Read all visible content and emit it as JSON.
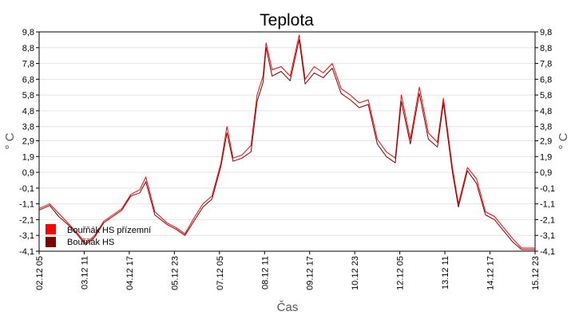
{
  "chart_data": {
    "type": "line",
    "title": "Teplota",
    "xlabel": "Čas",
    "ylabel": "° C",
    "ylabel_right": "° C",
    "grid": true,
    "legend_position": "bottom-left",
    "colors": {
      "background": "#ffffff",
      "grid": "#e4e4e4",
      "series_ground": "#ff0000",
      "series_main": "#800000"
    },
    "ylim": [
      -4.1,
      9.8
    ],
    "yticks": [
      "9,8",
      "8,8",
      "7,8",
      "6,8",
      "5,8",
      "4,8",
      "3,8",
      "2,9",
      "1,9",
      "0,9",
      "-0,1",
      "-1,1",
      "-2,1",
      "-3,1",
      "-4,1"
    ],
    "ytick_values": [
      9.8,
      8.8,
      7.8,
      6.8,
      5.8,
      4.8,
      3.8,
      2.9,
      1.9,
      0.9,
      -0.1,
      -1.1,
      -2.1,
      -3.1,
      -4.1
    ],
    "xlim": [
      "2019-12-02T05:00",
      "2019-12-15T23:00"
    ],
    "xticks": [
      "02.12 05",
      "03.12 11",
      "04.12 17",
      "05.12 23",
      "07.12 05",
      "08.12 11",
      "09.12 17",
      "10.12 23",
      "12.12 05",
      "13.12 11",
      "14.12 17",
      "15.12 23"
    ],
    "xtick_values": [
      "2019-12-02T05:00",
      "2019-12-03T11:00",
      "2019-12-04T17:00",
      "2019-12-05T23:00",
      "2019-12-07T05:00",
      "2019-12-08T11:00",
      "2019-12-09T17:00",
      "2019-12-10T23:00",
      "2019-12-12T05:00",
      "2019-12-13T11:00",
      "2019-12-14T17:00",
      "2019-12-15T23:00"
    ],
    "series": [
      {
        "name": "Bouřňák HS přízemní",
        "color": "#ff0000",
        "points": [
          [
            "2019-12-02T05:00",
            -1.4
          ],
          [
            "2019-12-02T12:00",
            -1.1
          ],
          [
            "2019-12-02T18:00",
            -1.7
          ],
          [
            "2019-12-03T00:00",
            -2.3
          ],
          [
            "2019-12-03T06:00",
            -2.9
          ],
          [
            "2019-12-03T12:00",
            -3.6
          ],
          [
            "2019-12-03T18:00",
            -3.1
          ],
          [
            "2019-12-04T00:00",
            -2.2
          ],
          [
            "2019-12-04T06:00",
            -1.8
          ],
          [
            "2019-12-04T12:00",
            -1.4
          ],
          [
            "2019-12-04T18:00",
            -0.5
          ],
          [
            "2019-12-05T00:00",
            -0.2
          ],
          [
            "2019-12-05T04:00",
            0.6
          ],
          [
            "2019-12-05T10:00",
            -1.6
          ],
          [
            "2019-12-05T18:00",
            -2.3
          ],
          [
            "2019-12-06T00:00",
            -2.6
          ],
          [
            "2019-12-06T06:00",
            -3.0
          ],
          [
            "2019-12-06T12:00",
            -2.0
          ],
          [
            "2019-12-06T18:00",
            -1.1
          ],
          [
            "2019-12-07T00:00",
            -0.6
          ],
          [
            "2019-12-07T06:00",
            1.5
          ],
          [
            "2019-12-07T10:00",
            3.8
          ],
          [
            "2019-12-07T14:00",
            1.8
          ],
          [
            "2019-12-07T20:00",
            2.0
          ],
          [
            "2019-12-08T02:00",
            2.6
          ],
          [
            "2019-12-08T06:00",
            5.8
          ],
          [
            "2019-12-08T10:00",
            7.0
          ],
          [
            "2019-12-08T12:00",
            9.1
          ],
          [
            "2019-12-08T16:00",
            7.4
          ],
          [
            "2019-12-08T22:00",
            7.6
          ],
          [
            "2019-12-09T04:00",
            7.0
          ],
          [
            "2019-12-09T10:00",
            9.6
          ],
          [
            "2019-12-09T14:00",
            6.8
          ],
          [
            "2019-12-09T20:00",
            7.6
          ],
          [
            "2019-12-10T02:00",
            7.2
          ],
          [
            "2019-12-10T08:00",
            7.8
          ],
          [
            "2019-12-10T14:00",
            6.2
          ],
          [
            "2019-12-10T20:00",
            5.8
          ],
          [
            "2019-12-11T02:00",
            5.3
          ],
          [
            "2019-12-11T08:00",
            5.5
          ],
          [
            "2019-12-11T14:00",
            3.0
          ],
          [
            "2019-12-11T20:00",
            2.2
          ],
          [
            "2019-12-12T02:00",
            1.8
          ],
          [
            "2019-12-12T06:00",
            5.8
          ],
          [
            "2019-12-12T12:00",
            3.0
          ],
          [
            "2019-12-12T18:00",
            6.3
          ],
          [
            "2019-12-13T00:00",
            3.4
          ],
          [
            "2019-12-13T06:00",
            2.8
          ],
          [
            "2019-12-13T10:00",
            5.6
          ],
          [
            "2019-12-13T16:00",
            1.2
          ],
          [
            "2019-12-13T20:00",
            -1.1
          ],
          [
            "2019-12-14T02:00",
            1.2
          ],
          [
            "2019-12-14T08:00",
            0.5
          ],
          [
            "2019-12-14T14:00",
            -1.6
          ],
          [
            "2019-12-14T20:00",
            -1.9
          ],
          [
            "2019-12-15T02:00",
            -2.6
          ],
          [
            "2019-12-15T08:00",
            -3.3
          ],
          [
            "2019-12-15T14:00",
            -3.9
          ],
          [
            "2019-12-15T23:00",
            -3.9
          ]
        ]
      },
      {
        "name": "Bouřňák HS",
        "color": "#800000",
        "points": [
          [
            "2019-12-02T05:00",
            -1.5
          ],
          [
            "2019-12-02T12:00",
            -1.2
          ],
          [
            "2019-12-02T18:00",
            -1.9
          ],
          [
            "2019-12-03T00:00",
            -2.4
          ],
          [
            "2019-12-03T06:00",
            -3.0
          ],
          [
            "2019-12-03T12:00",
            -3.7
          ],
          [
            "2019-12-03T18:00",
            -3.2
          ],
          [
            "2019-12-04T00:00",
            -2.3
          ],
          [
            "2019-12-04T06:00",
            -1.9
          ],
          [
            "2019-12-04T12:00",
            -1.5
          ],
          [
            "2019-12-04T18:00",
            -0.6
          ],
          [
            "2019-12-05T00:00",
            -0.4
          ],
          [
            "2019-12-05T04:00",
            0.3
          ],
          [
            "2019-12-05T10:00",
            -1.8
          ],
          [
            "2019-12-05T18:00",
            -2.4
          ],
          [
            "2019-12-06T00:00",
            -2.7
          ],
          [
            "2019-12-06T06:00",
            -3.1
          ],
          [
            "2019-12-06T12:00",
            -2.2
          ],
          [
            "2019-12-06T18:00",
            -1.3
          ],
          [
            "2019-12-07T00:00",
            -0.8
          ],
          [
            "2019-12-07T06:00",
            1.3
          ],
          [
            "2019-12-07T10:00",
            3.4
          ],
          [
            "2019-12-07T14:00",
            1.6
          ],
          [
            "2019-12-07T20:00",
            1.8
          ],
          [
            "2019-12-08T02:00",
            2.2
          ],
          [
            "2019-12-08T06:00",
            5.4
          ],
          [
            "2019-12-08T10:00",
            6.6
          ],
          [
            "2019-12-08T12:00",
            8.8
          ],
          [
            "2019-12-08T16:00",
            7.0
          ],
          [
            "2019-12-08T22:00",
            7.3
          ],
          [
            "2019-12-09T04:00",
            6.7
          ],
          [
            "2019-12-09T10:00",
            9.3
          ],
          [
            "2019-12-09T14:00",
            6.5
          ],
          [
            "2019-12-09T20:00",
            7.2
          ],
          [
            "2019-12-10T02:00",
            6.9
          ],
          [
            "2019-12-10T08:00",
            7.5
          ],
          [
            "2019-12-10T14:00",
            5.9
          ],
          [
            "2019-12-10T20:00",
            5.5
          ],
          [
            "2019-12-11T02:00",
            5.0
          ],
          [
            "2019-12-11T08:00",
            5.2
          ],
          [
            "2019-12-11T14:00",
            2.7
          ],
          [
            "2019-12-11T20:00",
            1.9
          ],
          [
            "2019-12-12T02:00",
            1.5
          ],
          [
            "2019-12-12T06:00",
            5.4
          ],
          [
            "2019-12-12T12:00",
            2.7
          ],
          [
            "2019-12-12T18:00",
            5.9
          ],
          [
            "2019-12-13T00:00",
            3.0
          ],
          [
            "2019-12-13T06:00",
            2.5
          ],
          [
            "2019-12-13T10:00",
            5.3
          ],
          [
            "2019-12-13T16:00",
            0.9
          ],
          [
            "2019-12-13T20:00",
            -1.3
          ],
          [
            "2019-12-14T02:00",
            1.0
          ],
          [
            "2019-12-14T08:00",
            0.2
          ],
          [
            "2019-12-14T14:00",
            -1.8
          ],
          [
            "2019-12-14T20:00",
            -2.1
          ],
          [
            "2019-12-15T02:00",
            -2.8
          ],
          [
            "2019-12-15T08:00",
            -3.5
          ],
          [
            "2019-12-15T14:00",
            -4.0
          ],
          [
            "2019-12-15T23:00",
            -4.0
          ]
        ]
      }
    ]
  }
}
